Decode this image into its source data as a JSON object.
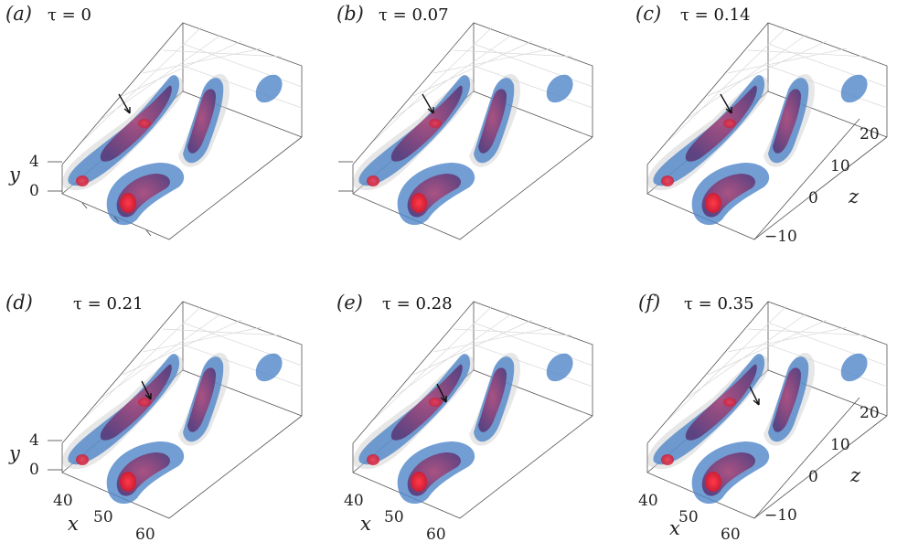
{
  "panels": [
    {
      "id": "a",
      "label": "(a)",
      "tau": "τ = 0"
    },
    {
      "id": "b",
      "label": "(b)",
      "tau": "τ = 0.07"
    },
    {
      "id": "c",
      "label": "(c)",
      "tau": "τ = 0.14"
    },
    {
      "id": "d",
      "label": "(d)",
      "tau": "τ = 0.21"
    },
    {
      "id": "e",
      "label": "(e)",
      "tau": "τ = 0.28"
    },
    {
      "id": "f",
      "label": "(f)",
      "tau": "τ = 0.35"
    }
  ],
  "axes": {
    "x_label": "x",
    "y_label": "y",
    "z_label": "z",
    "x_ticks": [
      "40",
      "50",
      "60"
    ],
    "y_ticks": [
      "0",
      "4"
    ],
    "z_ticks": [
      "−10",
      "0",
      "10",
      "20"
    ]
  },
  "colors": {
    "grey_isosurface": "#c8c8c8",
    "blue_isosurface": "#4f86c9",
    "purple_isosurface": "#7d3f78",
    "red_isosurface": "#d3223b",
    "arrow": "#111111"
  }
}
